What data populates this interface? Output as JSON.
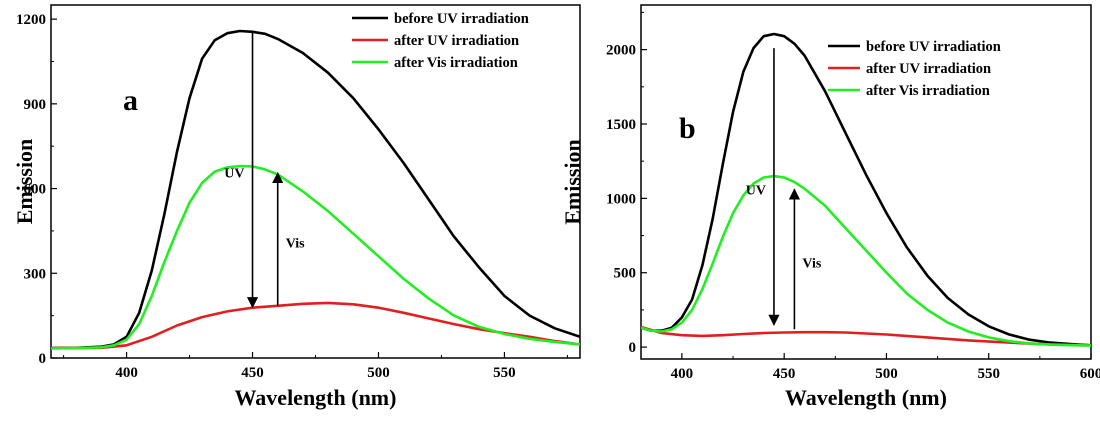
{
  "chart_data": [
    {
      "type": "line",
      "panel_label": "a",
      "xlabel": "Wavelength (nm)",
      "ylabel": "Emission",
      "xlim": [
        370,
        580
      ],
      "ylim": [
        0,
        1250
      ],
      "xticks": [
        400,
        450,
        500,
        550
      ],
      "yticks": [
        0,
        300,
        600,
        900,
        1200
      ],
      "legend_position": "top-right",
      "series": [
        {
          "name": "before UV irradiation",
          "color": "#000000",
          "x": [
            370,
            380,
            390,
            395,
            400,
            405,
            410,
            415,
            420,
            425,
            430,
            435,
            440,
            445,
            450,
            455,
            460,
            470,
            480,
            490,
            500,
            510,
            520,
            530,
            540,
            550,
            560,
            570,
            580
          ],
          "y": [
            35,
            36,
            40,
            48,
            75,
            160,
            310,
            510,
            730,
            920,
            1060,
            1125,
            1150,
            1158,
            1155,
            1148,
            1130,
            1080,
            1010,
            920,
            810,
            690,
            560,
            430,
            320,
            220,
            150,
            105,
            75
          ]
        },
        {
          "name": "after UV irradiation",
          "color": "#e02020",
          "x": [
            370,
            380,
            390,
            400,
            410,
            420,
            430,
            440,
            450,
            460,
            470,
            480,
            490,
            500,
            510,
            520,
            530,
            540,
            550,
            560,
            570,
            580
          ],
          "y": [
            35,
            35,
            36,
            45,
            75,
            115,
            145,
            165,
            178,
            185,
            192,
            195,
            190,
            178,
            160,
            140,
            120,
            102,
            88,
            75,
            60,
            48
          ]
        },
        {
          "name": "after Vis irradiation",
          "color": "#22ee22",
          "x": [
            370,
            380,
            390,
            395,
            400,
            405,
            410,
            415,
            420,
            425,
            430,
            435,
            440,
            445,
            450,
            455,
            460,
            470,
            480,
            490,
            500,
            510,
            520,
            530,
            540,
            550,
            560,
            570,
            580
          ],
          "y": [
            34,
            35,
            38,
            45,
            65,
            120,
            220,
            340,
            450,
            550,
            620,
            660,
            675,
            680,
            678,
            668,
            650,
            590,
            520,
            440,
            360,
            280,
            210,
            150,
            110,
            85,
            68,
            57,
            48
          ]
        }
      ],
      "annotations": [
        {
          "text": "UV",
          "direction": "down",
          "x": 450,
          "from": 1155,
          "to": 180
        },
        {
          "text": "Vis",
          "direction": "up",
          "x": 460,
          "from": 185,
          "to": 655
        }
      ]
    },
    {
      "type": "line",
      "panel_label": "b",
      "xlabel": "Wavelength (nm)",
      "ylabel": "Emission",
      "xlim": [
        380,
        600
      ],
      "ylim": [
        -80,
        2300
      ],
      "xticks": [
        400,
        450,
        500,
        550,
        600
      ],
      "yticks": [
        0,
        500,
        1000,
        1500,
        2000
      ],
      "legend_position": "top-right",
      "series": [
        {
          "name": "before UV irradiation",
          "color": "#000000",
          "x": [
            380,
            385,
            390,
            395,
            400,
            405,
            410,
            415,
            420,
            425,
            430,
            435,
            440,
            445,
            450,
            455,
            460,
            470,
            480,
            490,
            500,
            510,
            520,
            530,
            540,
            550,
            560,
            570,
            580,
            590,
            600
          ],
          "y": [
            130,
            110,
            110,
            130,
            200,
            320,
            550,
            860,
            1230,
            1580,
            1850,
            2010,
            2090,
            2105,
            2090,
            2040,
            1960,
            1720,
            1440,
            1160,
            900,
            670,
            480,
            330,
            220,
            140,
            85,
            50,
            30,
            20,
            12
          ]
        },
        {
          "name": "after UV irradiation",
          "color": "#e02020",
          "x": [
            380,
            390,
            400,
            410,
            420,
            430,
            440,
            450,
            460,
            470,
            480,
            500,
            520,
            540,
            560,
            580,
            600
          ],
          "y": [
            135,
            95,
            80,
            75,
            80,
            88,
            95,
            98,
            100,
            100,
            98,
            85,
            65,
            45,
            30,
            18,
            12
          ]
        },
        {
          "name": "after Vis irradiation",
          "color": "#22ee22",
          "x": [
            380,
            385,
            390,
            395,
            400,
            405,
            410,
            415,
            420,
            425,
            430,
            435,
            440,
            445,
            450,
            455,
            460,
            470,
            480,
            490,
            500,
            510,
            520,
            530,
            540,
            550,
            560,
            570,
            580,
            590,
            600
          ],
          "y": [
            130,
            110,
            105,
            120,
            165,
            250,
            390,
            560,
            740,
            900,
            1020,
            1100,
            1140,
            1150,
            1140,
            1110,
            1065,
            950,
            800,
            650,
            500,
            360,
            250,
            165,
            105,
            65,
            40,
            25,
            17,
            13,
            10
          ]
        }
      ],
      "annotations": [
        {
          "text": "UV",
          "direction": "down",
          "x": 445,
          "from": 2010,
          "to": 150
        },
        {
          "text": "Vis",
          "direction": "up",
          "x": 455,
          "from": 120,
          "to": 1060
        }
      ]
    }
  ]
}
